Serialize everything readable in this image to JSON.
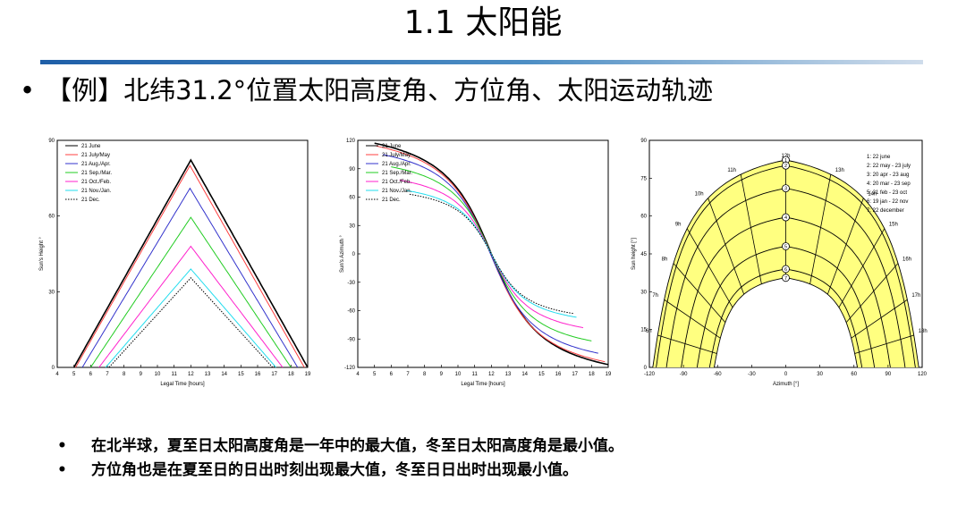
{
  "slide": {
    "title": "1.1  太阳能",
    "heading": "【例】北纬31.2°位置太阳高度角、方位角、太阳运动轨迹",
    "bullet": "•"
  },
  "notes": [
    {
      "bullet": "•",
      "text": "在北半球，夏至日太阳高度角是一年中的最大值，冬至日太阳高度角是最小值。"
    },
    {
      "bullet": "•",
      "text": "方位角也是在夏至日的日出时刻出现最大值，冬至日日出时出现最小值。"
    }
  ],
  "colors": {
    "june": "#000000",
    "july_may": "#ff4040",
    "aug_apr": "#3333cc",
    "sep_mar": "#22cc22",
    "oct_feb": "#ff22cc",
    "nov_jan": "#22ddee",
    "dec": "#000000",
    "band_fill": "#ffff80",
    "accent": "#1f5fa8"
  },
  "chart_data": [
    {
      "type": "line",
      "id": "sun-height",
      "xlabel": "Legal Time [hours]",
      "ylabel": "Sun's Height °",
      "xlim": [
        4,
        19
      ],
      "ylim": [
        0,
        90
      ],
      "xticks": [
        4,
        5,
        6,
        7,
        8,
        9,
        10,
        11,
        12,
        13,
        14,
        15,
        16,
        17,
        18,
        19
      ],
      "yticks": [
        0,
        30,
        60,
        90
      ],
      "series": [
        {
          "name": "21 June",
          "color_key": "june",
          "sunrise": 5.0,
          "sunset": 19.0,
          "peak": 82.2,
          "dashed": false
        },
        {
          "name": "21 July/May",
          "color_key": "july_may",
          "sunrise": 5.1,
          "sunset": 18.8,
          "peak": 80.0,
          "dashed": false
        },
        {
          "name": "21 Aug./Apr.",
          "color_key": "aug_apr",
          "sunrise": 5.5,
          "sunset": 18.4,
          "peak": 71.0,
          "dashed": false
        },
        {
          "name": "21 Sep./Mar.",
          "color_key": "sep_mar",
          "sunrise": 6.0,
          "sunset": 18.0,
          "peak": 59.5,
          "dashed": false
        },
        {
          "name": "21 Oct./Feb.",
          "color_key": "oct_feb",
          "sunrise": 6.5,
          "sunset": 17.5,
          "peak": 48.0,
          "dashed": false
        },
        {
          "name": "21 Nov./Jan.",
          "color_key": "nov_jan",
          "sunrise": 6.9,
          "sunset": 17.1,
          "peak": 39.0,
          "dashed": false
        },
        {
          "name": "21 Dec.",
          "color_key": "dec",
          "sunrise": 7.1,
          "sunset": 16.9,
          "peak": 35.5,
          "dashed": true
        }
      ]
    },
    {
      "type": "line",
      "id": "sun-azimuth",
      "xlabel": "Legal Time [hours]",
      "ylabel": "Sun's Azimuth °",
      "xlim": [
        4,
        19
      ],
      "ylim": [
        -120,
        120
      ],
      "xticks": [
        4,
        5,
        6,
        7,
        8,
        9,
        10,
        11,
        12,
        13,
        14,
        15,
        16,
        17,
        18,
        19
      ],
      "yticks": [
        -120,
        -90,
        -60,
        -30,
        0,
        30,
        60,
        90,
        120
      ],
      "series": [
        {
          "name": "21 June",
          "color_key": "june",
          "sunrise": 5.0,
          "sunset": 19.0,
          "a0": 117,
          "dashed": false
        },
        {
          "name": "21 July/May",
          "color_key": "july_may",
          "sunrise": 5.1,
          "sunset": 18.8,
          "a0": 114,
          "dashed": false
        },
        {
          "name": "21 Aug./Apr.",
          "color_key": "aug_apr",
          "sunrise": 5.5,
          "sunset": 18.4,
          "a0": 105,
          "dashed": false
        },
        {
          "name": "21 Sep./Mar.",
          "color_key": "sep_mar",
          "sunrise": 6.0,
          "sunset": 18.0,
          "a0": 92,
          "dashed": false
        },
        {
          "name": "21 Oct./Feb.",
          "color_key": "oct_feb",
          "sunrise": 6.5,
          "sunset": 17.5,
          "a0": 78,
          "dashed": false
        },
        {
          "name": "21 Nov./Jan.",
          "color_key": "nov_jan",
          "sunrise": 6.9,
          "sunset": 17.1,
          "a0": 67,
          "dashed": false
        },
        {
          "name": "21 Dec.",
          "color_key": "dec",
          "sunrise": 7.1,
          "sunset": 16.9,
          "a0": 63,
          "dashed": true
        }
      ]
    },
    {
      "type": "line",
      "id": "sun-path",
      "xlabel": "Azimuth [°]",
      "ylabel": "Sun height [°]",
      "xlim": [
        -120,
        120
      ],
      "ylim": [
        0,
        90
      ],
      "xticks": [
        -120,
        -90,
        -60,
        -30,
        0,
        30,
        60,
        90,
        120
      ],
      "yticks": [
        0,
        15,
        30,
        45,
        60,
        75,
        90
      ],
      "legend": [
        "1: 22 june",
        "2: 22 may - 23 july",
        "3: 20 apr - 23 aug",
        "4: 20 mar - 23 sep",
        "5: 21 feb - 23 oct",
        "6: 19 jan - 22 nov",
        "7: 22 december"
      ],
      "curves": [
        {
          "label": "1",
          "az0": 117,
          "peak": 82.2
        },
        {
          "label": "2",
          "az0": 114,
          "peak": 80.0
        },
        {
          "label": "3",
          "az0": 105,
          "peak": 71.0
        },
        {
          "label": "4",
          "az0": 92,
          "peak": 59.5
        },
        {
          "label": "5",
          "az0": 78,
          "peak": 48.0
        },
        {
          "label": "6",
          "az0": 67,
          "peak": 39.0
        },
        {
          "label": "7",
          "az0": 63,
          "peak": 35.5
        }
      ],
      "hour_labels": [
        "6h",
        "7h",
        "8h",
        "9h",
        "10h",
        "11h",
        "12h",
        "13h",
        "14h",
        "15h",
        "16h",
        "17h",
        "18h"
      ],
      "hour_values": [
        6,
        7,
        8,
        9,
        10,
        11,
        12,
        13,
        14,
        15,
        16,
        17,
        18
      ]
    }
  ]
}
